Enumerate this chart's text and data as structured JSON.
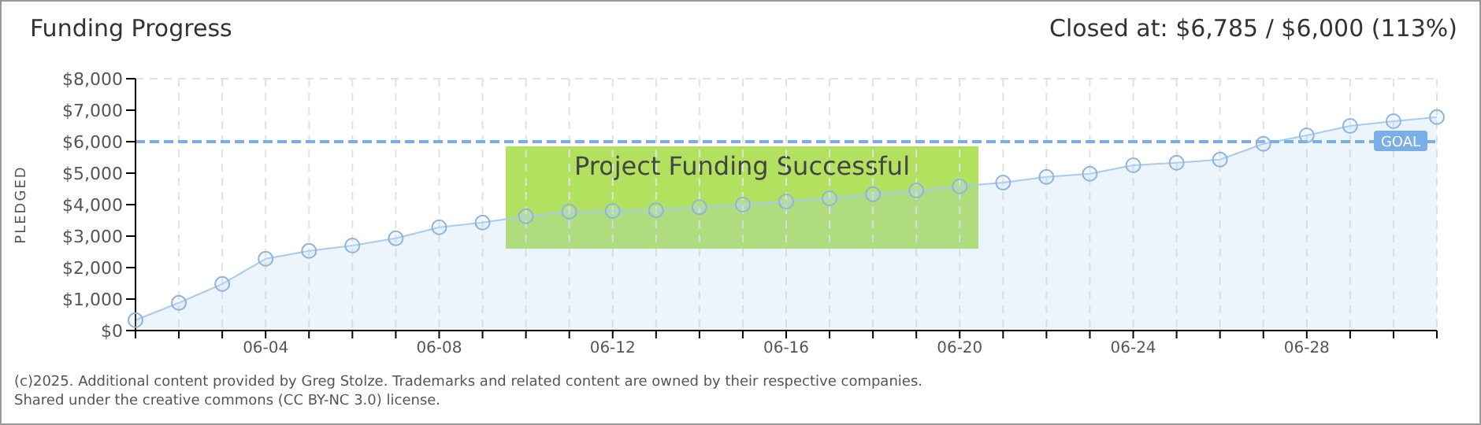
{
  "chart_data": {
    "type": "area",
    "title": "Funding Progress",
    "subtitle": "Closed at: $6,785 / $6,000 (113%)",
    "ylabel": "PLEDGED",
    "categories": [
      null,
      null,
      null,
      "06-04",
      null,
      null,
      null,
      "06-08",
      null,
      null,
      null,
      "06-12",
      null,
      null,
      null,
      "06-16",
      null,
      null,
      null,
      "06-20",
      null,
      null,
      null,
      "06-24",
      null,
      null,
      null,
      "06-28",
      null,
      null,
      null
    ],
    "series": [
      {
        "color": "#a9cbf0",
        "values": [
          330,
          880,
          1480,
          2280,
          2530,
          2700,
          2930,
          3280,
          3430,
          3630,
          3780,
          3800,
          3820,
          3920,
          4000,
          4100,
          4200,
          4330,
          4450,
          4580,
          4700,
          4880,
          4980,
          5250,
          5330,
          5430,
          5930,
          6200,
          6500,
          6650,
          6780
        ]
      }
    ],
    "ylim": [
      0,
      8000
    ],
    "yticks": [
      {
        "value": 0,
        "label": "$0"
      },
      {
        "value": 1000,
        "label": "$1,000"
      },
      {
        "value": 2000,
        "label": "$2,000"
      },
      {
        "value": 3000,
        "label": "$3,000"
      },
      {
        "value": 4000,
        "label": "$4,000"
      },
      {
        "value": 5000,
        "label": "$5,000"
      },
      {
        "value": 6000,
        "label": "$6,000"
      },
      {
        "value": 7000,
        "label": "$7,000"
      },
      {
        "value": 8000,
        "label": "$8,000"
      }
    ],
    "ref_lines": [
      {
        "axis": "y",
        "value": 6000,
        "label": "GOAL",
        "color": "#7aaee6",
        "line_style": "dashed"
      }
    ],
    "grid": true,
    "marker": "circle",
    "line_style": "solid",
    "annotations": [
      "Project Funding Successful",
      "(c)2025. Additional content provided by Greg Stolze. Trademarks and related content are owned by their respective companies.",
      "Shared under the creative commons (CC BY-NC 3.0) license."
    ]
  }
}
